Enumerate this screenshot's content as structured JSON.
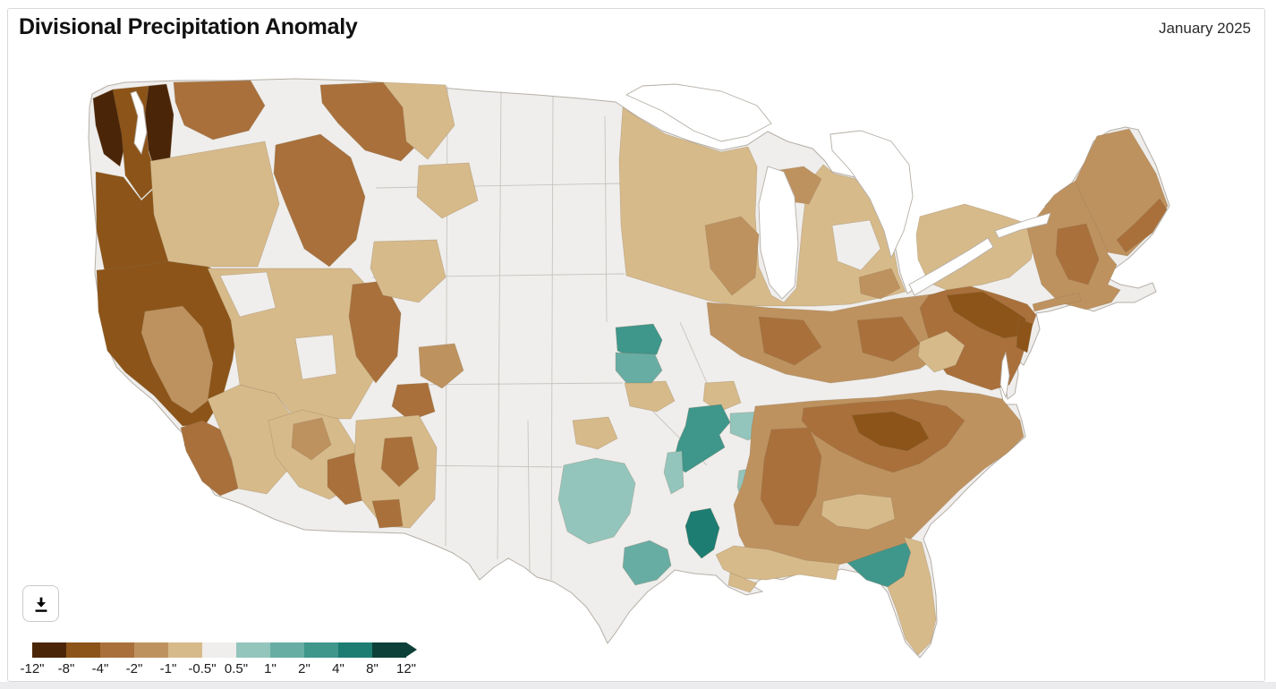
{
  "header": {
    "title": "Divisional Precipitation Anomaly",
    "date_label": "January 2025"
  },
  "controls": {
    "download_button": {
      "icon": "download-icon",
      "tooltip": "Download"
    }
  },
  "legend": {
    "tick_labels": [
      "-12\"",
      "-8\"",
      "-4\"",
      "-2\"",
      "-1\"",
      "-0.5\"",
      "0.5\"",
      "1\"",
      "2\"",
      "4\"",
      "8\"",
      "12\""
    ],
    "classes": [
      "neg12",
      "neg8",
      "neg4",
      "neg2",
      "neg1",
      "normal",
      "pos05",
      "pos1",
      "pos2",
      "pos4",
      "pos8"
    ]
  },
  "map": {
    "type": "choropleth-map",
    "subject": "U.S. climate divisions, precipitation anomaly (inches)",
    "neutral_color": "#efeeec",
    "outline_color": "#b6afa7",
    "water_color": "#ffffff",
    "palette": {
      "neg12": "#4b2508",
      "neg8": "#8c5418",
      "neg4": "#a9703b",
      "neg2": "#be925f",
      "neg1": "#d7ba8a",
      "normal": "#efeeec",
      "pos05": "#93c5bc",
      "pos1": "#68ada4",
      "pos2": "#3f968b",
      "pos4": "#1e7d72",
      "pos8": "#0d4038"
    },
    "scale_breaks_inches": [
      -12,
      -8,
      -4,
      -2,
      -1,
      -0.5,
      0.5,
      1,
      2,
      4,
      8,
      12
    ],
    "regions": [
      {
        "name": "Western Washington coast & Cascades",
        "anomaly": "-8\" to -12\"",
        "class": "neg12"
      },
      {
        "name": "Puget lowlands / W. Oregon",
        "anomaly": "-4\" to -8\"",
        "class": "neg8"
      },
      {
        "name": "Northern California & Sierra",
        "anomaly": "-4\" to -8\"",
        "class": "neg8"
      },
      {
        "name": "California Central Valley",
        "anomaly": "-1\" to -2\"",
        "class": "neg2"
      },
      {
        "name": "Southern California coast",
        "anomaly": "-2\" to -4\"",
        "class": "neg4"
      },
      {
        "name": "Central Idaho / W. Montana",
        "anomaly": "-2\" to -4\"",
        "class": "neg4"
      },
      {
        "name": "Great Basin, E. Oregon & Southwest",
        "anomaly": "-0.5\" to -1\"",
        "class": "neg1"
      },
      {
        "name": "Eastern Utah / SW Colorado / SE Arizona / S New Mexico",
        "anomaly": "-2\" to -4\"",
        "class": "neg4"
      },
      {
        "name": "Northern Plains & Dakotas",
        "anomaly": "near normal",
        "class": "normal"
      },
      {
        "name": "Minnesota / Wisconsin / Michigan",
        "anomaly": "-0.5\" to -1\"",
        "class": "neg1"
      },
      {
        "name": "Ohio Valley & Corn Belt",
        "anomaly": "-1\" to -4\"",
        "class": "neg2"
      },
      {
        "name": "Eastern Nebraska",
        "anomaly": "+1\" to +4\"",
        "class": "pos2"
      },
      {
        "name": "Eastern Oklahoma / W. Arkansas",
        "anomaly": "+0.5\" to +4\"",
        "class": "pos2"
      },
      {
        "name": "Central Texas",
        "anomaly": "+0.5\" to +1\"",
        "class": "pos05"
      },
      {
        "name": "Upper Texas coast",
        "anomaly": "+1\" to +2\"",
        "class": "pos1"
      },
      {
        "name": "Southeast Louisiana",
        "anomaly": "+4\" to +8\"",
        "class": "pos4"
      },
      {
        "name": "Central Mississippi",
        "anomaly": "+0.5\" to +1\"",
        "class": "pos05"
      },
      {
        "name": "North Florida (Big Bend)",
        "anomaly": "+2\" to +4\"",
        "class": "pos2"
      },
      {
        "name": "Florida peninsula",
        "anomaly": "-0.5\" to -1\"",
        "class": "neg1"
      },
      {
        "name": "Tennessee / N. Georgia / W. Carolinas",
        "anomaly": "-4\" to -8\"",
        "class": "neg8"
      },
      {
        "name": "Alabama / interior Southeast",
        "anomaly": "-2\" to -4\"",
        "class": "neg4"
      },
      {
        "name": "Kentucky / mid-South",
        "anomaly": "near normal",
        "class": "normal"
      },
      {
        "name": "Mid-Atlantic (PA / NJ / MD)",
        "anomaly": "-4\" to -8\"",
        "class": "neg8"
      },
      {
        "name": "New York",
        "anomaly": "-0.5\" to -1\"",
        "class": "neg1"
      },
      {
        "name": "New England & Maine",
        "anomaly": "-1\" to -4\"",
        "class": "neg2"
      }
    ]
  }
}
